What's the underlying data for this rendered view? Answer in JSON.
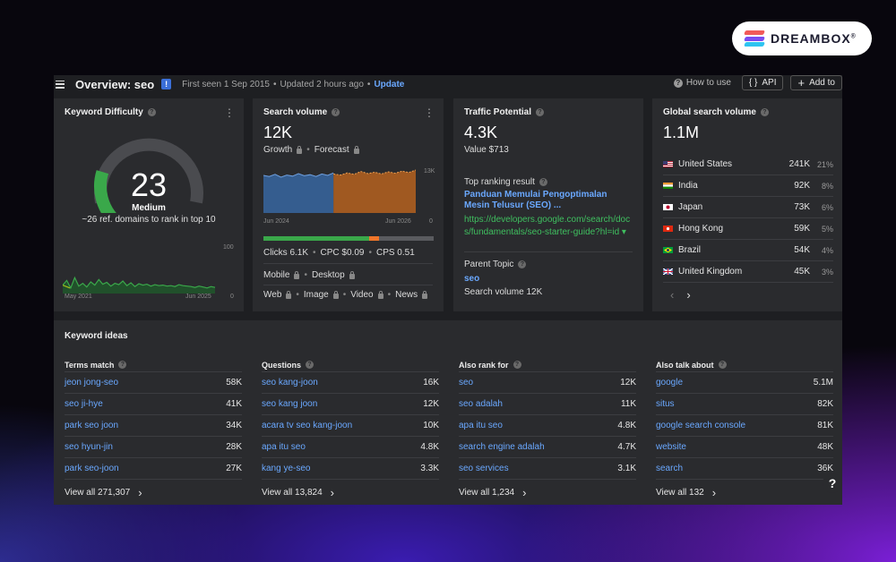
{
  "brand": {
    "name": "DREAMBOX",
    "mark": "®"
  },
  "header": {
    "title": "Overview: seo",
    "badge": "!",
    "first_seen": "First seen 1 Sep 2015",
    "updated": "Updated 2 hours ago",
    "bullet": "•",
    "update_link": "Update",
    "how_to_use": "How to use",
    "api_label": "API",
    "add_to_label": "Add to"
  },
  "kd": {
    "title": "Keyword Difficulty",
    "value": "23",
    "level": "Medium",
    "description": "~26 ref. domains to rank in top 10",
    "chart_start": "May 2021",
    "chart_end": "Jun 2025",
    "y_max": "100",
    "y_min": "0"
  },
  "search_volume": {
    "title": "Search volume",
    "value": "12K",
    "growth_label": "Growth",
    "forecast_label": "Forecast",
    "chart_start": "Jun 2024",
    "chart_end": "Jun 2026",
    "y_max": "13K",
    "y_min": "0",
    "clicks": "Clicks 6.1K",
    "cpc": "CPC $0.09",
    "cps": "CPS 0.51",
    "mobile": "Mobile",
    "desktop": "Desktop",
    "web": "Web",
    "image": "Image",
    "video": "Video",
    "news": "News",
    "click_split": {
      "organic": 0.62,
      "paid": 0.06,
      "none": 0.32
    }
  },
  "traffic_potential": {
    "title": "Traffic Potential",
    "value": "4.3K",
    "value_label": "Value $713",
    "top_ranking_label": "Top ranking result",
    "top_ranking_title": "Panduan Memulai Pengoptimalan Mesin Telusur (SEO) ...",
    "top_ranking_url": "https://developers.google.com/search/docs/fundamentals/seo-starter-guide?hl=id ▾",
    "parent_topic_label": "Parent Topic",
    "parent_topic": "seo",
    "parent_volume": "Search volume 12K"
  },
  "global_volume": {
    "title": "Global search volume",
    "value": "1.1M",
    "countries": [
      {
        "name": "United States",
        "volume": "241K",
        "pct": "21%"
      },
      {
        "name": "India",
        "volume": "92K",
        "pct": "8%"
      },
      {
        "name": "Japan",
        "volume": "73K",
        "pct": "6%"
      },
      {
        "name": "Hong Kong",
        "volume": "59K",
        "pct": "5%"
      },
      {
        "name": "Brazil",
        "volume": "54K",
        "pct": "4%"
      },
      {
        "name": "United Kingdom",
        "volume": "45K",
        "pct": "3%"
      }
    ],
    "prev": "‹",
    "next": "›"
  },
  "ideas": {
    "title": "Keyword ideas",
    "columns": [
      {
        "header": "Terms match",
        "rows": [
          {
            "kw": "jeon jong-seo",
            "vol": "58K"
          },
          {
            "kw": "seo ji-hye",
            "vol": "41K"
          },
          {
            "kw": "park seo joon",
            "vol": "34K"
          },
          {
            "kw": "seo hyun-jin",
            "vol": "28K"
          },
          {
            "kw": "park seo-joon",
            "vol": "27K"
          }
        ],
        "view_all": "View all 271,307"
      },
      {
        "header": "Questions",
        "rows": [
          {
            "kw": "seo kang-joon",
            "vol": "16K"
          },
          {
            "kw": "seo kang joon",
            "vol": "12K"
          },
          {
            "kw": "acara tv seo kang-joon",
            "vol": "10K"
          },
          {
            "kw": "apa itu seo",
            "vol": "4.8K"
          },
          {
            "kw": "kang ye-seo",
            "vol": "3.3K"
          }
        ],
        "view_all": "View all 13,824"
      },
      {
        "header": "Also rank for",
        "rows": [
          {
            "kw": "seo",
            "vol": "12K"
          },
          {
            "kw": "seo adalah",
            "vol": "11K"
          },
          {
            "kw": "apa itu seo",
            "vol": "4.8K"
          },
          {
            "kw": "search engine adalah",
            "vol": "4.7K"
          },
          {
            "kw": "seo services",
            "vol": "3.1K"
          }
        ],
        "view_all": "View all 1,234"
      },
      {
        "header": "Also talk about",
        "rows": [
          {
            "kw": "google",
            "vol": "5.1M"
          },
          {
            "kw": "situs",
            "vol": "82K"
          },
          {
            "kw": "google search console",
            "vol": "81K"
          },
          {
            "kw": "website",
            "vol": "48K"
          },
          {
            "kw": "search",
            "vol": "36K"
          }
        ],
        "view_all": "View all 132"
      }
    ],
    "chevron": "›"
  },
  "help_fab": "?",
  "kebab": "⋮",
  "colors": {
    "accent_link": "#6aa8ff",
    "url_green": "#3fbf5f",
    "kd_green": "#3aa84a",
    "sv_blue": "#3a6fb0",
    "sv_orange": "#c86a1e",
    "kd_line": "#a8c21a"
  },
  "chart_data": [
    {
      "type": "line",
      "name": "kd-history",
      "title": "",
      "x_range": [
        "May 2021",
        "Jun 2025"
      ],
      "ylim": [
        0,
        100
      ],
      "values": [
        18,
        28,
        12,
        34,
        16,
        22,
        14,
        25,
        18,
        30,
        20,
        24,
        16,
        22,
        19,
        27,
        17,
        23,
        15,
        21,
        18,
        20,
        16,
        19,
        17,
        18,
        16,
        17,
        15,
        19,
        17,
        16,
        15,
        13,
        16,
        14,
        12,
        15,
        13
      ]
    },
    {
      "type": "area",
      "name": "search-volume-trend",
      "title": "",
      "x_range": [
        "Jun 2024",
        "Jun 2026"
      ],
      "ylim": [
        0,
        13000
      ],
      "series": [
        {
          "values": [
            10500,
            10200,
            10800,
            10000,
            10600,
            10300,
            11000,
            10400,
            10700,
            10200,
            10900,
            10500,
            11200
          ]
        },
        {
          "values": [
            10900,
            10600,
            11200,
            10800,
            11600,
            11000,
            11400,
            10900,
            11500,
            11100,
            11700,
            11300,
            12000
          ]
        }
      ]
    }
  ]
}
